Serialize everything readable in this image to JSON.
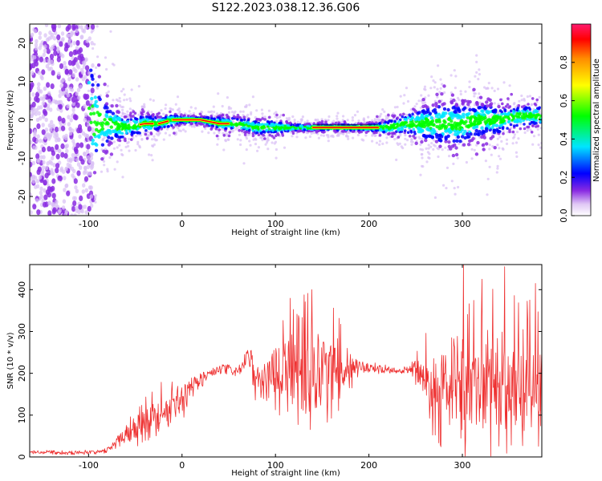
{
  "figure_title": "S122.2023.038.12.36.G06",
  "colorbar": {
    "label": "Normalized spectral amplitude",
    "ticks": [
      "0.0",
      "0.2",
      "0.4",
      "0.6",
      "0.8"
    ],
    "tick_values": [
      0.0,
      0.2,
      0.4,
      0.6,
      0.8
    ],
    "range": [
      0,
      1
    ],
    "colors": [
      "#ffffff",
      "#e0c8f5",
      "#8a2be2",
      "#0000ff",
      "#00e5ff",
      "#00ff00",
      "#ffff00",
      "#ff8c00",
      "#ff0000",
      "#ff1a6e"
    ]
  },
  "chart_data": [
    {
      "type": "heatmap",
      "title": "",
      "xlabel": "Height of straight line (km)",
      "ylabel": "Frequency (Hz)",
      "xlim": [
        -163,
        385
      ],
      "ylim": [
        -25,
        25
      ],
      "xticks": [
        -100,
        0,
        100,
        200,
        300
      ],
      "yticks": [
        -20,
        -10,
        0,
        10,
        20
      ],
      "ridge": {
        "x": [
          -100,
          -80,
          -60,
          -40,
          -25,
          -10,
          0,
          20,
          40,
          60,
          80,
          100,
          120,
          140,
          160,
          180,
          200,
          220,
          240,
          260,
          280,
          300,
          320,
          340,
          360,
          385
        ],
        "frequency": [
          0,
          -1,
          -2,
          -1,
          -1,
          0,
          0,
          0,
          -1,
          -1,
          -2,
          -2,
          -2,
          -2,
          -2,
          -2,
          -2,
          -2,
          -1,
          -1,
          -1,
          -1,
          0,
          0,
          1,
          1
        ],
        "spread": [
          20,
          6,
          3,
          3,
          2,
          2,
          1,
          1,
          2,
          2,
          2,
          2,
          1,
          1,
          1,
          1,
          1,
          2,
          3,
          5,
          6,
          6,
          5,
          4,
          3,
          3
        ]
      },
      "colors": {
        "noise": "#8a2be2",
        "core": "#ff0000"
      }
    },
    {
      "type": "line",
      "title": "",
      "xlabel": "Height of straight line (km)",
      "ylabel": "SNR (10 * v/v)",
      "xlim": [
        -163,
        385
      ],
      "ylim": [
        0,
        460
      ],
      "xticks": [
        -100,
        0,
        100,
        200,
        300
      ],
      "yticks": [
        0,
        100,
        200,
        300,
        400
      ],
      "series": [
        {
          "name": "",
          "color": "#ee3030",
          "x": [
            -163,
            -140,
            -120,
            -100,
            -85,
            -75,
            -60,
            -45,
            -30,
            -15,
            0,
            15,
            30,
            45,
            60,
            65,
            70,
            80,
            90,
            100,
            110,
            120,
            130,
            140,
            150,
            160,
            170,
            180,
            190,
            200,
            215,
            230,
            245,
            250,
            260,
            270,
            280,
            290,
            300,
            310,
            320,
            330,
            340,
            350,
            360,
            370,
            385
          ],
          "mean": [
            12,
            12,
            10,
            12,
            12,
            25,
            60,
            85,
            100,
            115,
            140,
            175,
            200,
            210,
            205,
            215,
            240,
            190,
            180,
            220,
            200,
            215,
            200,
            215,
            205,
            215,
            205,
            220,
            215,
            215,
            210,
            205,
            210,
            220,
            200,
            180,
            180,
            175,
            170,
            165,
            170,
            165,
            170,
            165,
            165,
            160,
            165
          ],
          "amplitude": [
            6,
            6,
            6,
            6,
            6,
            10,
            35,
            45,
            45,
            40,
            45,
            30,
            15,
            15,
            15,
            20,
            30,
            55,
            75,
            85,
            95,
            105,
            115,
            120,
            110,
            100,
            90,
            50,
            20,
            15,
            12,
            10,
            15,
            40,
            80,
            110,
            130,
            140,
            150,
            150,
            150,
            145,
            140,
            135,
            130,
            125,
            120
          ],
          "peaks": [
            {
              "x": 139,
              "y": 400
            },
            {
              "x": 301,
              "y": 460
            },
            {
              "x": 345,
              "y": 455
            },
            {
              "x": 321,
              "y": 425
            },
            {
              "x": 372,
              "y": 375
            },
            {
              "x": 378,
              "y": 415
            }
          ]
        }
      ]
    }
  ]
}
